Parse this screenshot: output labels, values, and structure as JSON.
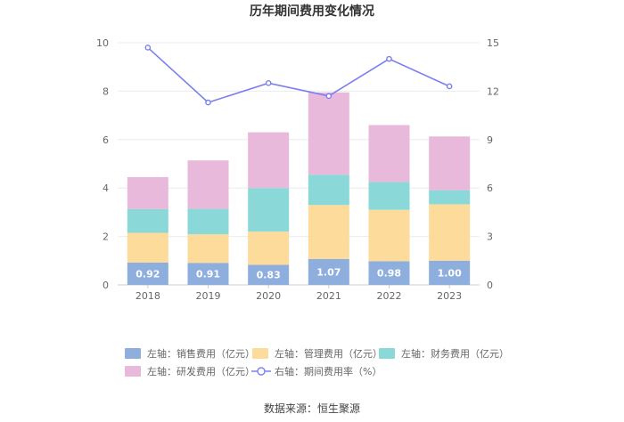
{
  "chart_data": {
    "type": "stacked-bar+line",
    "title": "历年期间费用变化情况",
    "categories": [
      "2018",
      "2019",
      "2020",
      "2021",
      "2022",
      "2023"
    ],
    "series": [
      {
        "name": "销售费用",
        "legend": "左轴：销售费用（亿元）",
        "axis": "left",
        "color": "#8eaedd",
        "values": [
          0.92,
          0.91,
          0.83,
          1.07,
          0.98,
          1.0
        ],
        "labels": [
          "0.92",
          "0.91",
          "0.83",
          "1.07",
          "0.98",
          "1.00"
        ]
      },
      {
        "name": "管理费用",
        "legend": "左轴：管理费用（亿元）",
        "axis": "left",
        "color": "#fddb9b",
        "values": [
          1.23,
          1.18,
          1.37,
          2.23,
          2.12,
          2.33
        ]
      },
      {
        "name": "财务费用",
        "legend": "左轴：财务费用（亿元）",
        "axis": "left",
        "color": "#8ad8d8",
        "values": [
          0.98,
          1.05,
          1.8,
          1.25,
          1.15,
          0.58
        ]
      },
      {
        "name": "研发费用",
        "legend": "左轴：研发费用（亿元）",
        "axis": "left",
        "color": "#e8b9da",
        "values": [
          1.32,
          2.0,
          2.3,
          3.4,
          2.35,
          2.22
        ]
      }
    ],
    "line": {
      "name": "期间费用率",
      "legend": "右轴：期间费用率（%）",
      "axis": "right",
      "color": "#7b7ff0",
      "values": [
        14.7,
        11.3,
        12.5,
        11.7,
        14.0,
        12.3
      ]
    },
    "left_axis": {
      "min": 0,
      "max": 10,
      "ticks": [
        "0",
        "2",
        "4",
        "6",
        "8",
        "10"
      ]
    },
    "right_axis": {
      "min": 0,
      "max": 15,
      "ticks": [
        "0",
        "3",
        "6",
        "9",
        "12",
        "15"
      ]
    },
    "grid": true,
    "legend_position": "bottom"
  },
  "source": "数据来源：恒生聚源"
}
